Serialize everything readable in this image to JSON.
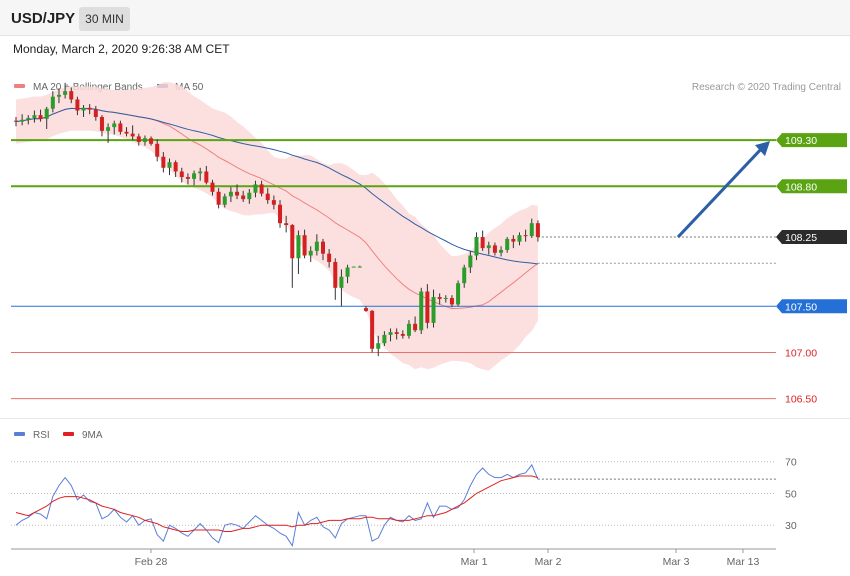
{
  "header": {
    "symbol": "USD/JPY",
    "interval": "30 MIN"
  },
  "datetime": "Monday, March 2, 2020 9:26:38 AM CET",
  "legend": {
    "main": [
      {
        "label": "MA 20 + Bollinger Bands",
        "color": "#f08080"
      },
      {
        "label": "MA 50",
        "color": "#2e5fa4"
      }
    ],
    "rsi": [
      {
        "label": "RSI",
        "color": "#5b7fd6"
      },
      {
        "label": "9MA",
        "color": "#e02020"
      }
    ]
  },
  "copyright": "Research © 2020 Trading Central",
  "colors": {
    "up": "#2a9d2a",
    "down": "#d42020",
    "resistance": "#5aa312",
    "support": "#2470d6",
    "pivot": "#e87070",
    "last": "#2b2b2b",
    "band": "#fbdada",
    "ma20": "#f08080",
    "ma50": "#2e5fa4",
    "rsi": "#5b7fd6",
    "rsi_ma": "#e02020",
    "arrow": "#2d5fa6"
  },
  "chart_data": [
    {
      "type": "candlestick",
      "title": "USD/JPY",
      "ylim": [
        106.42,
        109.81
      ],
      "levels": [
        {
          "value": 109.3,
          "label": "109.30",
          "kind": "resistance"
        },
        {
          "value": 108.8,
          "label": "108.80",
          "kind": "resistance"
        },
        {
          "value": 108.25,
          "label": "108.25",
          "kind": "last"
        },
        {
          "value": 107.5,
          "label": "107.50",
          "kind": "support"
        },
        {
          "value": 107.0,
          "label": "107.00",
          "kind": "pivot"
        },
        {
          "value": 106.5,
          "label": "106.50",
          "kind": "pivot"
        }
      ],
      "x_ticks": [
        "Feb 28",
        "Mar 1",
        "Mar 2",
        "Mar 3",
        "Mar 13"
      ],
      "arrow": {
        "from": 108.25,
        "to": 109.3
      },
      "ohlc": [
        [
          109.51,
          109.55,
          109.45,
          109.5
        ],
        [
          109.5,
          109.58,
          109.46,
          109.52
        ],
        [
          109.52,
          109.57,
          109.47,
          109.54
        ],
        [
          109.54,
          109.62,
          109.49,
          109.57
        ],
        [
          109.57,
          109.63,
          109.5,
          109.53
        ],
        [
          109.53,
          109.66,
          109.42,
          109.64
        ],
        [
          109.64,
          109.83,
          109.6,
          109.77
        ],
        [
          109.77,
          109.86,
          109.7,
          109.79
        ],
        [
          109.79,
          109.92,
          109.75,
          109.83
        ],
        [
          109.83,
          109.87,
          109.7,
          109.74
        ],
        [
          109.74,
          109.77,
          109.57,
          109.62
        ],
        [
          109.62,
          109.68,
          109.55,
          109.65
        ],
        [
          109.65,
          109.69,
          109.58,
          109.63
        ],
        [
          109.63,
          109.67,
          109.51,
          109.55
        ],
        [
          109.55,
          109.57,
          109.34,
          109.4
        ],
        [
          109.4,
          109.48,
          109.27,
          109.44
        ],
        [
          109.44,
          109.51,
          109.36,
          109.48
        ],
        [
          109.48,
          109.51,
          109.36,
          109.39
        ],
        [
          109.39,
          109.44,
          109.34,
          109.37
        ],
        [
          109.37,
          109.46,
          109.3,
          109.34
        ],
        [
          109.34,
          109.37,
          109.24,
          109.28
        ],
        [
          109.28,
          109.35,
          109.24,
          109.32
        ],
        [
          109.32,
          109.34,
          109.24,
          109.26
        ],
        [
          109.26,
          109.31,
          109.07,
          109.12
        ],
        [
          109.12,
          109.17,
          108.95,
          109.0
        ],
        [
          109.0,
          109.1,
          108.92,
          109.06
        ],
        [
          109.06,
          109.08,
          108.9,
          108.96
        ],
        [
          108.96,
          109.0,
          108.84,
          108.9
        ],
        [
          108.9,
          108.94,
          108.82,
          108.88
        ],
        [
          108.88,
          108.97,
          108.81,
          108.94
        ],
        [
          108.94,
          109.0,
          108.86,
          108.96
        ],
        [
          108.96,
          109.02,
          108.82,
          108.84
        ],
        [
          108.84,
          108.87,
          108.7,
          108.74
        ],
        [
          108.74,
          108.78,
          108.56,
          108.6
        ],
        [
          108.6,
          108.72,
          108.57,
          108.69
        ],
        [
          108.69,
          108.79,
          108.63,
          108.74
        ],
        [
          108.74,
          108.82,
          108.66,
          108.7
        ],
        [
          108.7,
          108.75,
          108.63,
          108.66
        ],
        [
          108.66,
          108.77,
          108.61,
          108.73
        ],
        [
          108.73,
          108.86,
          108.68,
          108.82
        ],
        [
          108.82,
          108.86,
          108.69,
          108.72
        ],
        [
          108.72,
          108.78,
          108.61,
          108.65
        ],
        [
          108.65,
          108.7,
          108.55,
          108.6
        ],
        [
          108.6,
          108.65,
          108.35,
          108.4
        ],
        [
          108.4,
          108.48,
          108.3,
          108.38
        ],
        [
          108.38,
          108.39,
          107.7,
          108.02
        ],
        [
          108.02,
          108.32,
          107.85,
          108.27
        ],
        [
          108.27,
          108.33,
          108.02,
          108.05
        ],
        [
          108.05,
          108.15,
          107.98,
          108.1
        ],
        [
          108.1,
          108.28,
          108.05,
          108.2
        ],
        [
          108.2,
          108.23,
          108.0,
          108.07
        ],
        [
          108.07,
          108.12,
          107.92,
          107.98
        ],
        [
          107.98,
          108.02,
          107.57,
          107.7
        ],
        [
          107.7,
          107.9,
          107.5,
          107.82
        ],
        [
          107.82,
          107.95,
          107.75,
          107.92
        ],
        [
          107.92,
          107.93,
          107.92,
          107.93
        ],
        [
          107.93,
          107.94,
          107.93,
          107.93
        ],
        [
          107.48,
          107.5,
          107.44,
          107.45
        ],
        [
          107.45,
          107.46,
          107.0,
          107.04
        ],
        [
          107.04,
          107.18,
          106.96,
          107.1
        ],
        [
          107.1,
          107.23,
          107.07,
          107.19
        ],
        [
          107.19,
          107.26,
          107.12,
          107.22
        ],
        [
          107.22,
          107.26,
          107.14,
          107.2
        ],
        [
          107.2,
          107.24,
          107.15,
          107.18
        ],
        [
          107.18,
          107.35,
          107.15,
          107.31
        ],
        [
          107.31,
          107.39,
          107.22,
          107.24
        ],
        [
          107.24,
          107.7,
          107.2,
          107.66
        ],
        [
          107.66,
          107.74,
          107.26,
          107.32
        ],
        [
          107.32,
          107.68,
          107.27,
          107.6
        ],
        [
          107.6,
          107.64,
          107.52,
          107.58
        ],
        [
          107.58,
          107.62,
          107.54,
          107.59
        ],
        [
          107.59,
          107.62,
          107.49,
          107.52
        ],
        [
          107.52,
          107.78,
          107.5,
          107.75
        ],
        [
          107.75,
          107.95,
          107.7,
          107.92
        ],
        [
          107.92,
          108.1,
          107.86,
          108.05
        ],
        [
          108.05,
          108.3,
          108.0,
          108.25
        ],
        [
          108.25,
          108.32,
          108.1,
          108.13
        ],
        [
          108.13,
          108.2,
          108.06,
          108.16
        ],
        [
          108.16,
          108.19,
          108.05,
          108.08
        ],
        [
          108.08,
          108.15,
          108.04,
          108.11
        ],
        [
          108.11,
          108.25,
          108.08,
          108.23
        ],
        [
          108.23,
          108.27,
          108.13,
          108.2
        ],
        [
          108.2,
          108.3,
          108.16,
          108.27
        ],
        [
          108.27,
          108.33,
          108.2,
          108.26
        ],
        [
          108.26,
          108.45,
          108.24,
          108.4
        ],
        [
          108.4,
          108.43,
          108.2,
          108.25
        ]
      ]
    },
    {
      "type": "line",
      "title": "RSI",
      "ylim": [
        15,
        78
      ],
      "y_ticks": [
        70,
        50,
        30
      ],
      "series": [
        {
          "name": "RSI",
          "values": [
            30,
            33,
            35,
            38,
            37,
            34,
            48,
            55,
            60,
            55,
            46,
            49,
            45,
            44,
            34,
            36,
            40,
            35,
            32,
            36,
            30,
            33,
            34,
            24,
            20,
            30,
            28,
            25,
            23,
            27,
            31,
            27,
            22,
            19,
            30,
            31,
            30,
            28,
            32,
            36,
            33,
            30,
            28,
            25,
            23,
            17,
            38,
            30,
            33,
            35,
            29,
            27,
            22,
            31,
            34,
            35,
            36,
            36,
            20,
            22,
            30,
            35,
            33,
            32,
            36,
            33,
            34,
            44,
            35,
            42,
            42,
            40,
            41,
            46,
            55,
            62,
            66,
            62,
            60,
            60,
            62,
            60,
            62,
            63,
            68,
            59
          ]
        },
        {
          "name": "9MA",
          "values": [
            38,
            37,
            36,
            38,
            40,
            42,
            45,
            47,
            48,
            48,
            48,
            47,
            46,
            44,
            42,
            41,
            40,
            38,
            37,
            36,
            35,
            33,
            32,
            31,
            29,
            28,
            27,
            26,
            26,
            27,
            27,
            27,
            27,
            27,
            26,
            26,
            27,
            28,
            28,
            29,
            30,
            30,
            30,
            30,
            30,
            29,
            30,
            30,
            31,
            31,
            32,
            33,
            33,
            33,
            34,
            34,
            34,
            35,
            35,
            34,
            34,
            34,
            33,
            33,
            33,
            34,
            35,
            36,
            36,
            37,
            38,
            40,
            42,
            44,
            47,
            50,
            52,
            54,
            56,
            58,
            59,
            60,
            61,
            61,
            61,
            60
          ]
        }
      ]
    }
  ]
}
